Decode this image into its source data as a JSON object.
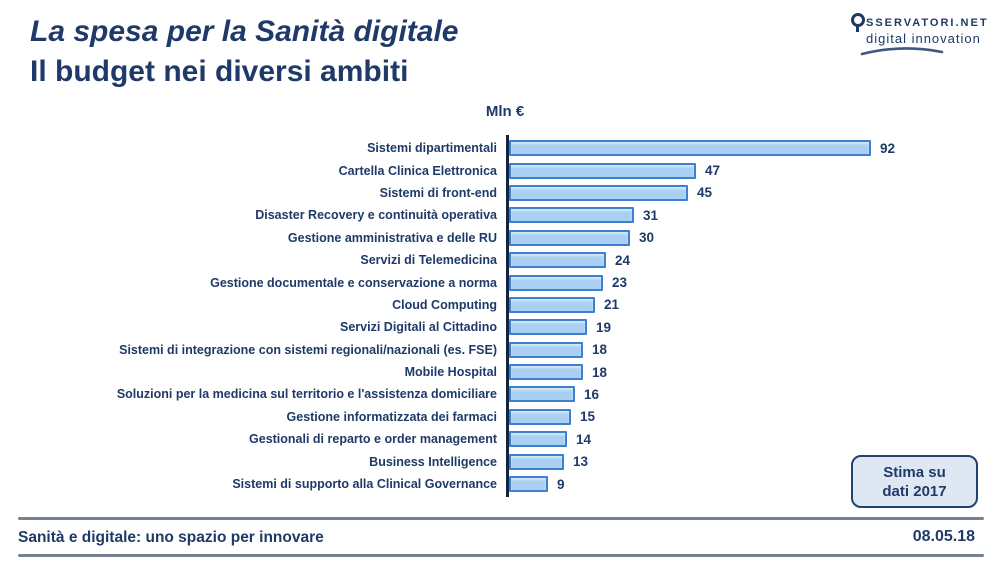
{
  "header": {
    "title_line1": "La spesa per la Sanità digitale",
    "title_line2": "Il budget nei diversi ambiti"
  },
  "logo": {
    "name_caps": "SSERVATORI.NET",
    "tagline": "digital innovation"
  },
  "chart_data": {
    "type": "bar",
    "orientation": "horizontal",
    "title": "Mln €",
    "unit_label": "Mln €",
    "categories": [
      "Sistemi dipartimentali",
      "Cartella Clinica Elettronica",
      "Sistemi di front-end",
      "Disaster Recovery e continuità operativa",
      "Gestione amministrativa e delle RU",
      "Servizi di Telemedicina",
      "Gestione documentale e conservazione a norma",
      "Cloud Computing",
      "Servizi Digitali al Cittadino",
      "Sistemi di integrazione con sistemi regionali/nazionali (es. FSE)",
      "Mobile Hospital",
      "Soluzioni per la medicina sul territorio e l'assistenza domiciliare",
      "Gestione informatizzata dei farmaci",
      "Gestionali di reparto e order management",
      "Business Intelligence",
      "Sistemi di supporto alla Clinical Governance"
    ],
    "values": [
      92,
      47,
      45,
      31,
      30,
      24,
      23,
      21,
      19,
      18,
      18,
      16,
      15,
      14,
      13,
      9
    ],
    "xlim": [
      0,
      95
    ],
    "grid": false,
    "legend": false,
    "data_labels": true
  },
  "annotation": {
    "line1": "Stima su",
    "line2": "dati 2017"
  },
  "footer": {
    "left_text": "Sanità e digitale: uno spazio per innovare",
    "date": "08.05.18"
  },
  "colors": {
    "navy": "#1F3A68",
    "bar_fill": "#A9CFF3",
    "bar_border": "#3C80CE",
    "badge_bg": "#DEE8F5",
    "axis": "#14243E",
    "footer_line": "#75828F",
    "background": "#FFFFFF"
  }
}
